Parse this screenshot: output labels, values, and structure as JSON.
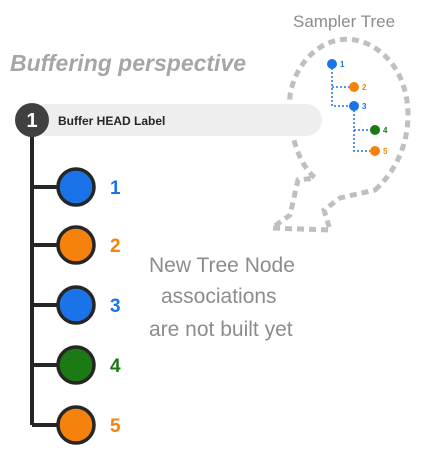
{
  "perspective_title": "Buffering perspective",
  "sampler_tree_title": "Sampler Tree",
  "head": {
    "number": "1",
    "label": "Buffer HEAD Label"
  },
  "nodes": [
    {
      "number": "1",
      "color": "#1a73e8"
    },
    {
      "number": "2",
      "color": "#f5820d"
    },
    {
      "number": "3",
      "color": "#1a73e8"
    },
    {
      "number": "4",
      "color": "#1b7a14"
    },
    {
      "number": "5",
      "color": "#f5820d"
    }
  ],
  "sampler_nodes": [
    {
      "number": "1",
      "color": "#1a73e8",
      "depth": 0
    },
    {
      "number": "2",
      "color": "#f5820d",
      "depth": 1
    },
    {
      "number": "3",
      "color": "#1a73e8",
      "depth": 1
    },
    {
      "number": "4",
      "color": "#1b7a14",
      "depth": 2
    },
    {
      "number": "5",
      "color": "#f5820d",
      "depth": 2
    }
  ],
  "note": {
    "line1": "New Tree Node",
    "line2": "associations",
    "line3": "are not built yet"
  },
  "colors": {
    "gray_text": "#a6a6a6",
    "note_text": "#8c8c8c",
    "dark": "#262626",
    "label_bg": "#eeeeee",
    "dotted": "#bfbfbf",
    "connector": "#1a73e8"
  }
}
